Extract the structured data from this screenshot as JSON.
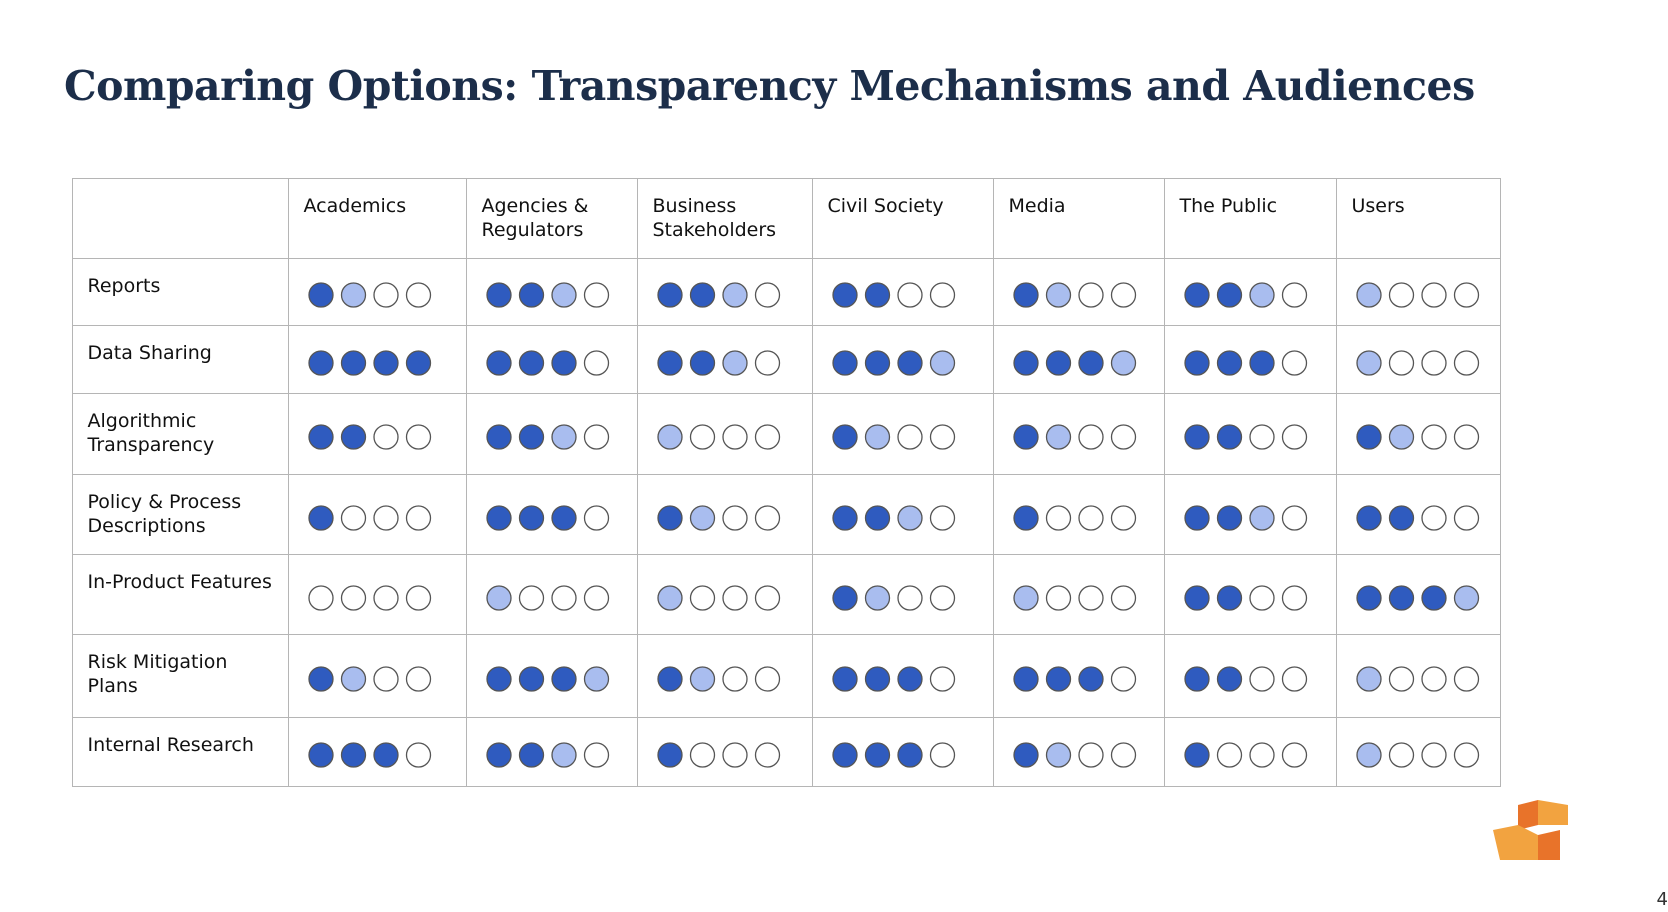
{
  "title": "Comparing Options: Transparency Mechanisms and Audiences",
  "columns": [
    "Academics",
    "Agencies & Regulators",
    "Business Stakeholders",
    "Civil Society",
    "Media",
    "The Public",
    "Users"
  ],
  "rows": [
    {
      "label": "Reports",
      "scores": [
        1.5,
        2.5,
        2.5,
        2,
        1.5,
        2.5,
        0.5
      ]
    },
    {
      "label": "Data Sharing",
      "scores": [
        4,
        3,
        2.5,
        3.5,
        3.5,
        3,
        0.5
      ]
    },
    {
      "label": "Algorithmic Transparency",
      "scores": [
        2,
        2.5,
        0.5,
        1.5,
        1.5,
        2,
        1.5
      ]
    },
    {
      "label": "Policy & Process Descriptions",
      "scores": [
        1,
        3,
        1.5,
        2.5,
        1,
        2.5,
        2
      ]
    },
    {
      "label": "In-Product Features",
      "scores": [
        0,
        0.5,
        0.5,
        1.5,
        0.5,
        2,
        3.5
      ]
    },
    {
      "label": "Risk Mitigation Plans",
      "scores": [
        1.5,
        3.5,
        1.5,
        3,
        3,
        2,
        0.5
      ]
    },
    {
      "label": "Internal Research",
      "scores": [
        3,
        2.5,
        1,
        3,
        1.5,
        1,
        0.5
      ]
    }
  ],
  "page_number": "4"
}
